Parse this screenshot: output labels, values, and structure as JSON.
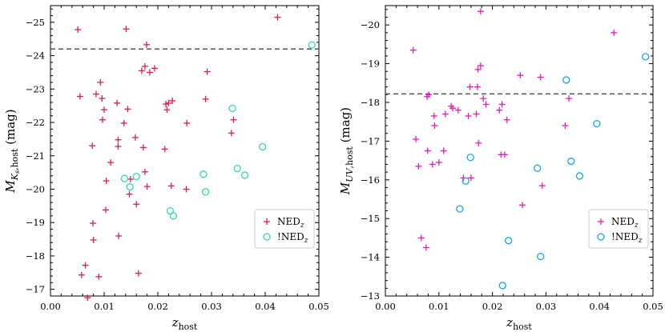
{
  "chart_data": [
    {
      "type": "scatter",
      "id": "left",
      "xlabel_main": "z",
      "xlabel_sub": "host",
      "ylabel_main": "M",
      "ylabel_sub": "K",
      "ylabel_subsub": "s",
      "ylabel_sub2": ",host",
      "ylabel_unit": " (mag)",
      "xlim": [
        0.0,
        0.05
      ],
      "ylim": [
        -16.8,
        -25.5
      ],
      "xticks": [
        "0.00",
        "0.01",
        "0.02",
        "0.03",
        "0.04",
        "0.05"
      ],
      "xtick_values": [
        0.0,
        0.01,
        0.02,
        0.03,
        0.04,
        0.05
      ],
      "yticks": [
        "−17",
        "−18",
        "−19",
        "−20",
        "−21",
        "−22",
        "−23",
        "−24",
        "−25"
      ],
      "ytick_values": [
        -17,
        -18,
        -19,
        -20,
        -21,
        -22,
        -23,
        -24,
        -25
      ],
      "threshold": -24.2,
      "legend": {
        "position": "lower-right",
        "ned_label": "NED",
        "ned_sub": "z",
        "notned_label": "!NED",
        "notned_sub": "z"
      },
      "colors": {
        "ned": "#d6224f",
        "notned": "#33d6b0",
        "dashed": "#555555"
      },
      "series": [
        {
          "name": "NED_z",
          "marker": "plus",
          "points": [
            [
              0.0051,
              -24.78
            ],
            [
              0.0055,
              -22.78
            ],
            [
              0.0058,
              -17.43
            ],
            [
              0.0065,
              -17.72
            ],
            [
              0.0069,
              -16.75
            ],
            [
              0.0078,
              -21.3
            ],
            [
              0.0079,
              -18.98
            ],
            [
              0.008,
              -18.48
            ],
            [
              0.0085,
              -22.85
            ],
            [
              0.009,
              -17.38
            ],
            [
              0.0093,
              -23.2
            ],
            [
              0.0096,
              -22.72
            ],
            [
              0.0097,
              -22.08
            ],
            [
              0.01,
              -22.38
            ],
            [
              0.0103,
              -19.38
            ],
            [
              0.0104,
              -20.25
            ],
            [
              0.0112,
              -20.8
            ],
            [
              0.0124,
              -22.58
            ],
            [
              0.0126,
              -21.48
            ],
            [
              0.0126,
              -21.28
            ],
            [
              0.0127,
              -18.6
            ],
            [
              0.0137,
              -21.98
            ],
            [
              0.0141,
              -24.8
            ],
            [
              0.0144,
              -22.4
            ],
            [
              0.0147,
              -19.85
            ],
            [
              0.0149,
              -20.3
            ],
            [
              0.0158,
              -21.55
            ],
            [
              0.016,
              -19.55
            ],
            [
              0.0164,
              -17.48
            ],
            [
              0.017,
              -23.55
            ],
            [
              0.0173,
              -21.25
            ],
            [
              0.0176,
              -23.68
            ],
            [
              0.0176,
              -20.52
            ],
            [
              0.0179,
              -24.33
            ],
            [
              0.018,
              -20.08
            ],
            [
              0.0185,
              -23.5
            ],
            [
              0.0194,
              -23.62
            ],
            [
              0.0213,
              -21.2
            ],
            [
              0.0215,
              -22.55
            ],
            [
              0.0217,
              -22.38
            ],
            [
              0.022,
              -22.58
            ],
            [
              0.0225,
              -20.1
            ],
            [
              0.0227,
              -22.65
            ],
            [
              0.0253,
              -20.0
            ],
            [
              0.0254,
              -21.98
            ],
            [
              0.0289,
              -22.7
            ],
            [
              0.0292,
              -23.52
            ],
            [
              0.0337,
              -21.68
            ],
            [
              0.0341,
              -22.08
            ],
            [
              0.0423,
              -25.15
            ]
          ]
        },
        {
          "name": "!NED_z",
          "marker": "circle",
          "points": [
            [
              0.0138,
              -20.32
            ],
            [
              0.0148,
              -20.07
            ],
            [
              0.016,
              -20.38
            ],
            [
              0.0223,
              -19.35
            ],
            [
              0.0229,
              -19.2
            ],
            [
              0.0285,
              -20.45
            ],
            [
              0.0289,
              -19.92
            ],
            [
              0.0339,
              -22.42
            ],
            [
              0.0348,
              -20.62
            ],
            [
              0.0362,
              -20.42
            ],
            [
              0.0395,
              -21.27
            ],
            [
              0.0487,
              -24.32
            ]
          ]
        }
      ]
    },
    {
      "type": "scatter",
      "id": "right",
      "xlabel_main": "z",
      "xlabel_sub": "host",
      "ylabel_main": "M",
      "ylabel_sub": "UV",
      "ylabel_subsub": "",
      "ylabel_sub2": ",host",
      "ylabel_unit": " (mag)",
      "xlim": [
        0.0,
        0.05
      ],
      "ylim": [
        -13.0,
        -20.5
      ],
      "xticks": [
        "0.00",
        "0.01",
        "0.02",
        "0.03",
        "0.04",
        "0.05"
      ],
      "xtick_values": [
        0.0,
        0.01,
        0.02,
        0.03,
        0.04,
        0.05
      ],
      "yticks": [
        "−13",
        "−14",
        "−15",
        "−16",
        "−17",
        "−18",
        "−19",
        "−20"
      ],
      "ytick_values": [
        -13,
        -14,
        -15,
        -16,
        -17,
        -18,
        -19,
        -20
      ],
      "threshold": -18.22,
      "legend": {
        "position": "lower-right",
        "ned_label": "NED",
        "ned_sub": "z",
        "notned_label": "!NED",
        "notned_sub": "z"
      },
      "colors": {
        "ned": "#e01fb4",
        "notned": "#1aa6e0",
        "dashed": "#555555"
      },
      "series": [
        {
          "name": "NED_z",
          "marker": "plus",
          "points": [
            [
              0.0052,
              -19.35
            ],
            [
              0.0057,
              -17.05
            ],
            [
              0.0062,
              -16.35
            ],
            [
              0.0067,
              -14.5
            ],
            [
              0.0076,
              -14.25
            ],
            [
              0.0078,
              -18.15
            ],
            [
              0.0079,
              -16.75
            ],
            [
              0.0081,
              -18.2
            ],
            [
              0.0088,
              -16.4
            ],
            [
              0.0092,
              -17.4
            ],
            [
              0.0091,
              -17.65
            ],
            [
              0.01,
              -16.45
            ],
            [
              0.0109,
              -16.75
            ],
            [
              0.0112,
              -17.7
            ],
            [
              0.0123,
              -17.9
            ],
            [
              0.0126,
              -17.85
            ],
            [
              0.0136,
              -17.8
            ],
            [
              0.0146,
              -16.05
            ],
            [
              0.0155,
              -17.65
            ],
            [
              0.0158,
              -18.4
            ],
            [
              0.016,
              -16.05
            ],
            [
              0.017,
              -17.7
            ],
            [
              0.0172,
              -18.4
            ],
            [
              0.0173,
              -18.85
            ],
            [
              0.0174,
              -16.95
            ],
            [
              0.0178,
              -20.35
            ],
            [
              0.0178,
              -18.95
            ],
            [
              0.0183,
              -18.1
            ],
            [
              0.0188,
              -17.95
            ],
            [
              0.0213,
              -17.8
            ],
            [
              0.0216,
              -16.65
            ],
            [
              0.0218,
              -17.95
            ],
            [
              0.0223,
              -16.65
            ],
            [
              0.0227,
              -17.55
            ],
            [
              0.0252,
              -18.7
            ],
            [
              0.0256,
              -15.35
            ],
            [
              0.029,
              -18.65
            ],
            [
              0.0293,
              -15.85
            ],
            [
              0.0336,
              -17.4
            ],
            [
              0.0343,
              -18.1
            ],
            [
              0.0427,
              -19.8
            ]
          ]
        },
        {
          "name": "!NED_z",
          "marker": "circle",
          "points": [
            [
              0.0139,
              -15.25
            ],
            [
              0.015,
              -15.97
            ],
            [
              0.0159,
              -16.58
            ],
            [
              0.0219,
              -13.27
            ],
            [
              0.023,
              -14.43
            ],
            [
              0.0284,
              -16.3
            ],
            [
              0.029,
              -14.02
            ],
            [
              0.0338,
              -18.58
            ],
            [
              0.0347,
              -16.48
            ],
            [
              0.0363,
              -16.1
            ],
            [
              0.0395,
              -17.45
            ],
            [
              0.0486,
              -19.18
            ]
          ]
        }
      ]
    }
  ]
}
